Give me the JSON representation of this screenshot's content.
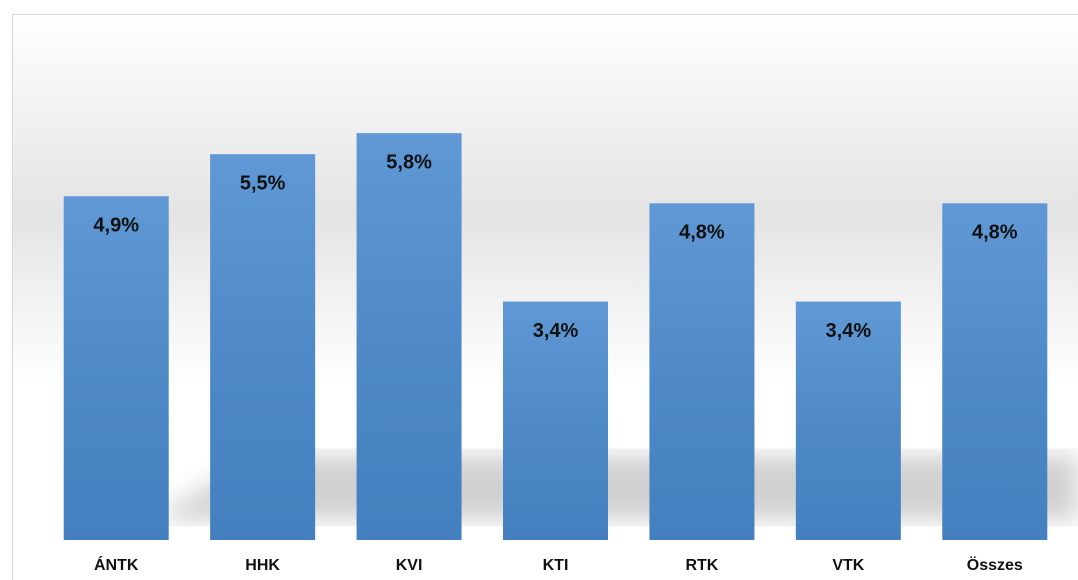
{
  "chart_data": {
    "type": "bar",
    "categories": [
      "ÁNTK",
      "HHK",
      "KVI",
      "KTI",
      "RTK",
      "VTK",
      "Összes"
    ],
    "values": [
      4.9,
      5.5,
      5.8,
      3.4,
      4.8,
      3.4,
      4.8
    ],
    "value_labels": [
      "4,9%",
      "5,5%",
      "5,8%",
      "3,4%",
      "4,8%",
      "3,4%",
      "4,8%"
    ],
    "color": "#4a8bd0",
    "ylim": [
      0,
      7
    ]
  }
}
